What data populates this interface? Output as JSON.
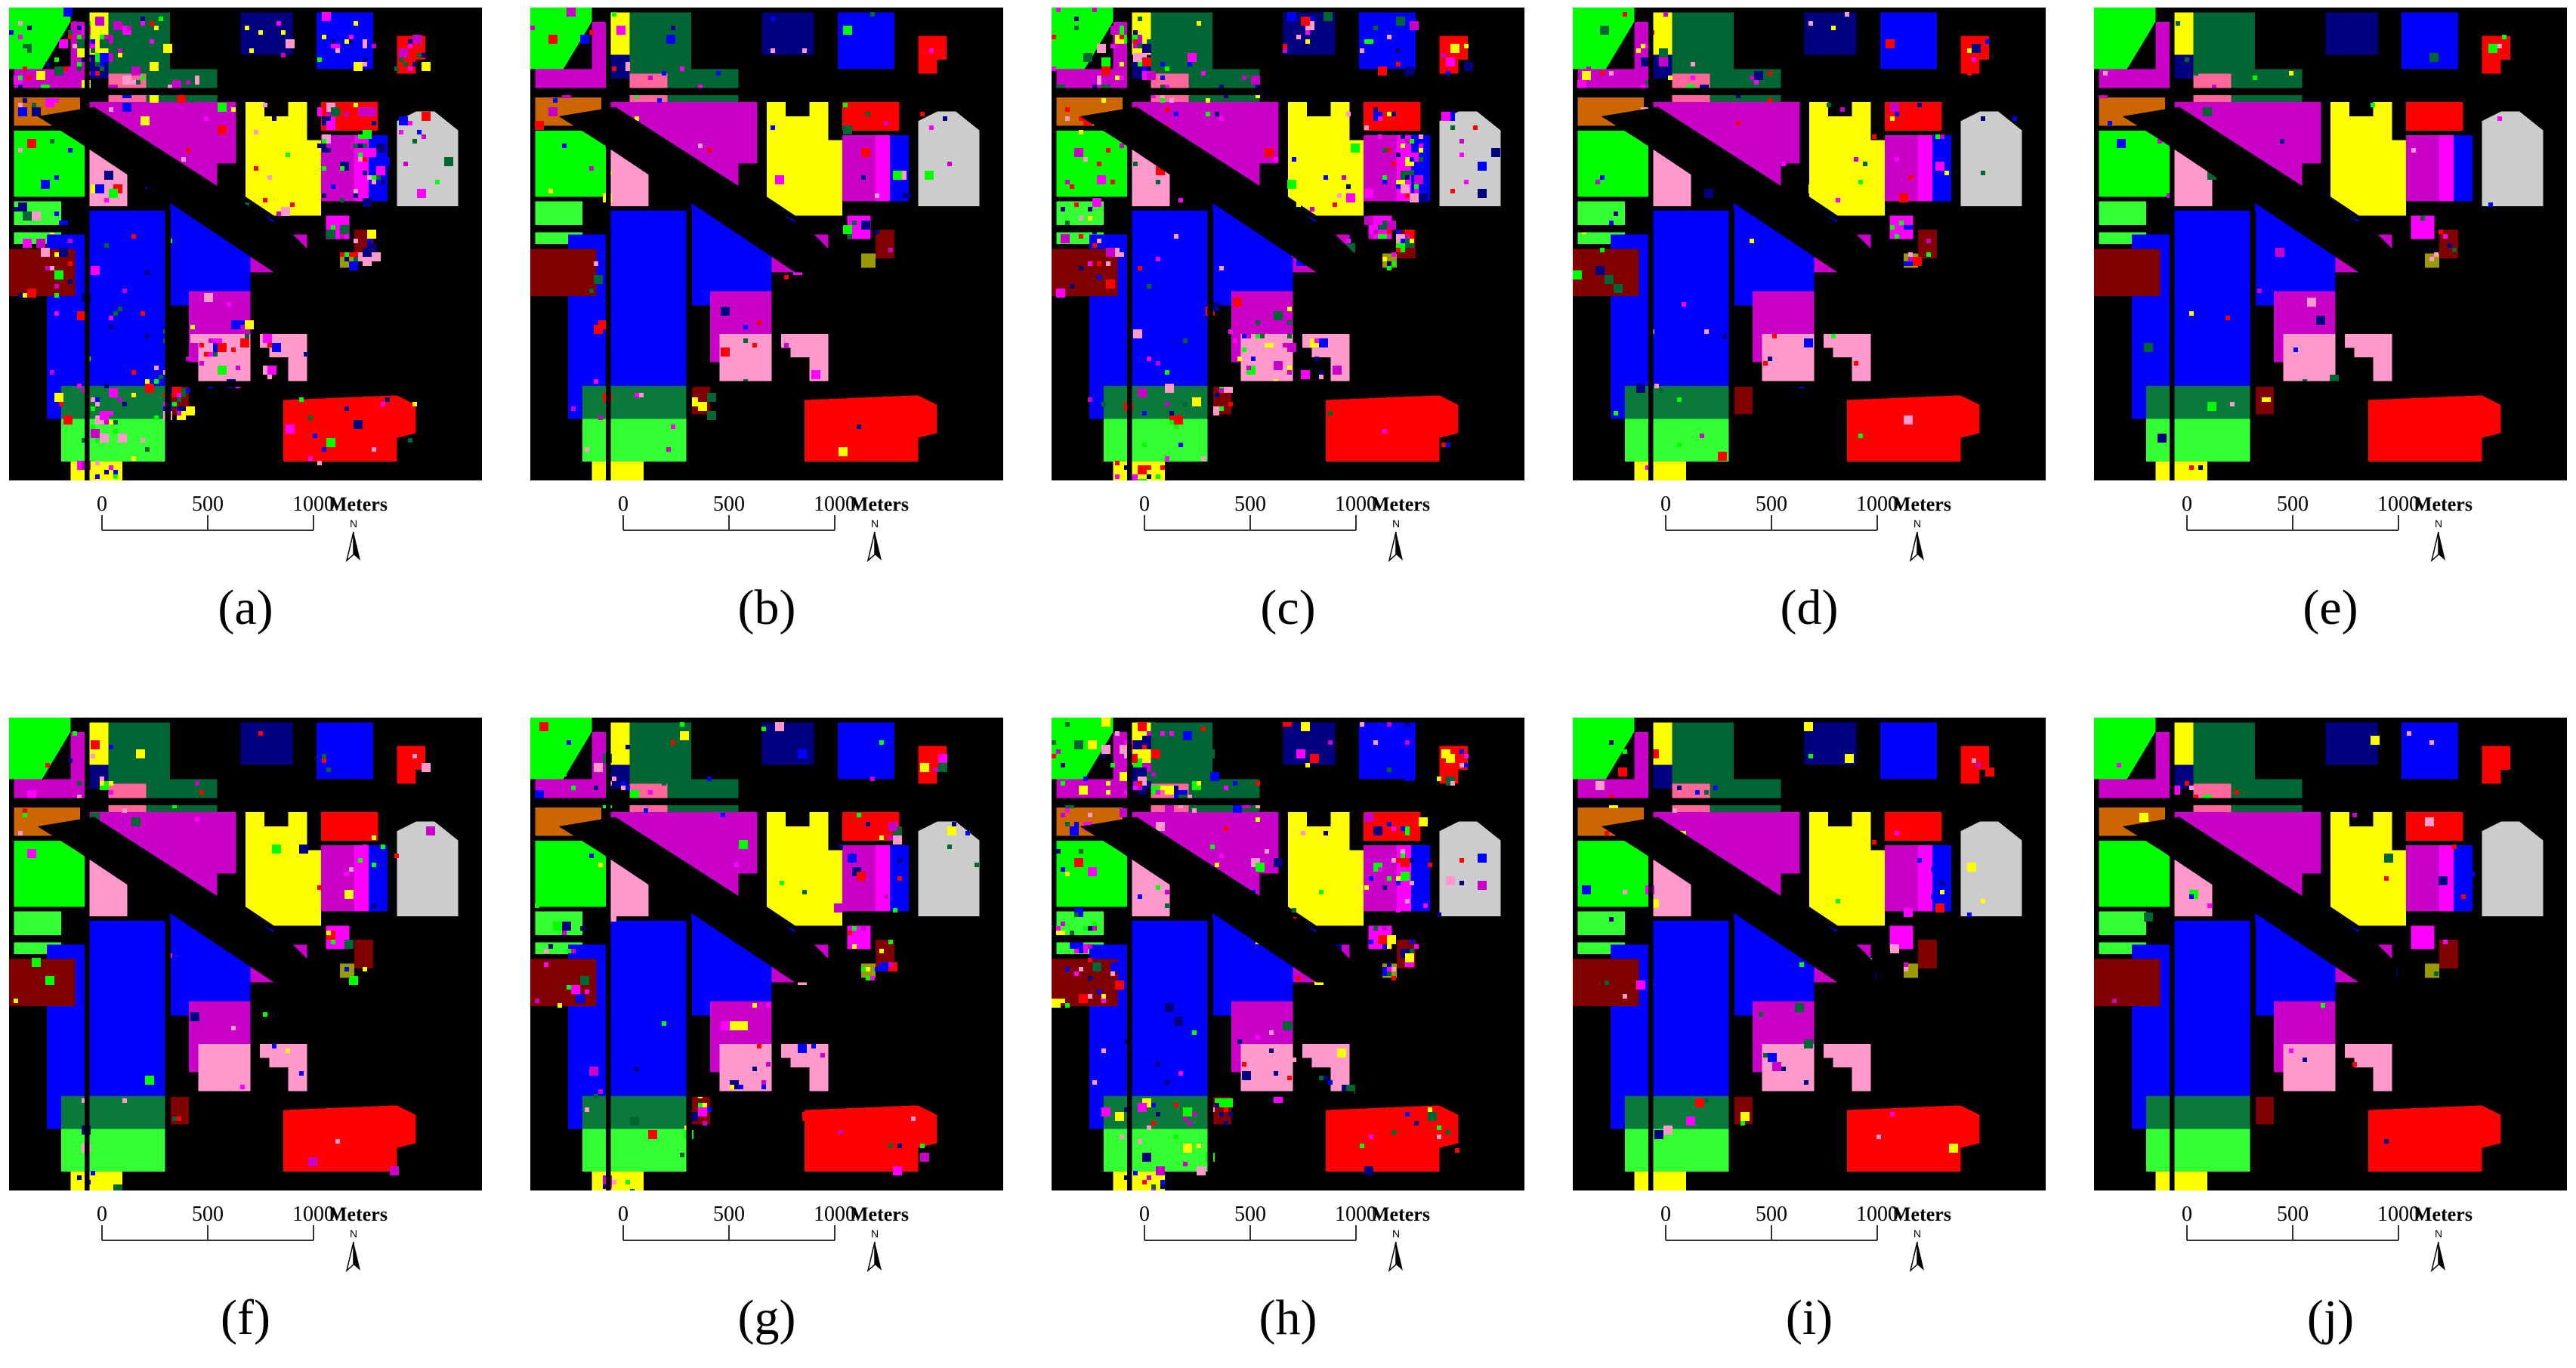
{
  "scale_bar": {
    "ticks": [
      "0",
      "500",
      "1000"
    ],
    "unit": "Meters",
    "north_label": "N"
  },
  "colors": {
    "background": "#000000",
    "corn_notill": "#ff0000",
    "grass": "#00ff00",
    "soybean": "#0000ff",
    "hay": "#ffff00",
    "woods": "#c800c8",
    "pasture": "#ff99cc",
    "building": "#cccccc",
    "trees": "#006633",
    "alfalfa": "#0a7a3a",
    "oats": "#800000",
    "wheat": "#ff6699",
    "stone": "#cc6600",
    "navy": "#000080",
    "magenta": "#ff00ff",
    "olive": "#999900",
    "lime": "#33ff33"
  },
  "panels": [
    {
      "id": "a",
      "caption": "(a)",
      "noise": 0.55
    },
    {
      "id": "b",
      "caption": "(b)",
      "noise": 0.12
    },
    {
      "id": "c",
      "caption": "(c)",
      "noise": 0.42
    },
    {
      "id": "d",
      "caption": "(d)",
      "noise": 0.14
    },
    {
      "id": "e",
      "caption": "(e)",
      "noise": 0.06
    },
    {
      "id": "f",
      "caption": "(f)",
      "noise": 0.1
    },
    {
      "id": "g",
      "caption": "(g)",
      "noise": 0.18
    },
    {
      "id": "h",
      "caption": "(h)",
      "noise": 0.4
    },
    {
      "id": "i",
      "caption": "(i)",
      "noise": 0.08
    },
    {
      "id": "j",
      "caption": "(j)",
      "noise": 0.04
    }
  ]
}
